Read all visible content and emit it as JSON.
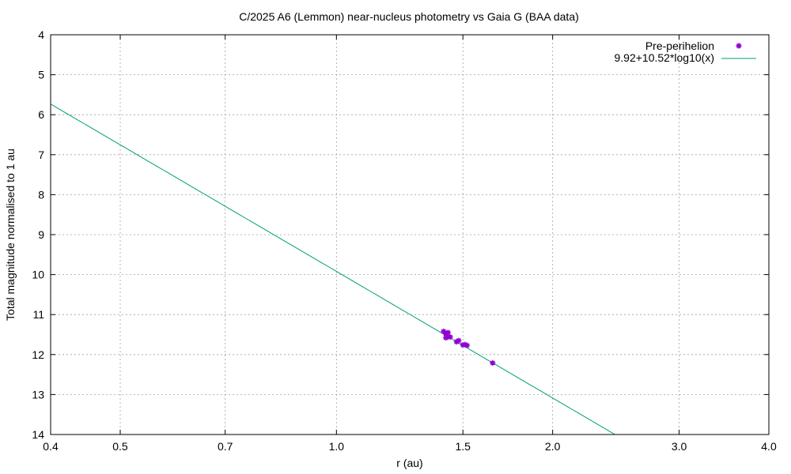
{
  "chart_data": {
    "type": "scatter",
    "title": "C/2025 A6 (Lemmon) near-nucleus photometry vs Gaia G (BAA data)",
    "xlabel": "r (au)",
    "ylabel": "Total magnitude normalised to 1 au",
    "x_scale": "log",
    "xlim": [
      0.4,
      4.0
    ],
    "ylim": [
      14,
      4
    ],
    "y_inverted": true,
    "x_ticks": [
      0.4,
      0.5,
      0.7,
      1.0,
      1.5,
      2.0,
      3.0,
      4.0
    ],
    "x_tick_labels": [
      "0.4",
      "0.5",
      "0.7",
      "1.0",
      "1.5",
      "2.0",
      "3.0",
      "4.0"
    ],
    "y_ticks": [
      4,
      5,
      6,
      7,
      8,
      9,
      10,
      11,
      12,
      13,
      14
    ],
    "y_tick_labels": [
      "4",
      "5",
      "6",
      "7",
      "8",
      "9",
      "10",
      "11",
      "12",
      "13",
      "14"
    ],
    "grid": true,
    "legend_position": "top-right",
    "series": [
      {
        "name": "Pre-perihelion",
        "kind": "points",
        "color": "#9400d3",
        "x": [
          1.41,
          1.42,
          1.42,
          1.43,
          1.43,
          1.44,
          1.47,
          1.48,
          1.5,
          1.51,
          1.52,
          1.65
        ],
        "y": [
          11.42,
          11.48,
          11.58,
          11.45,
          11.55,
          11.56,
          11.68,
          11.65,
          11.76,
          11.75,
          11.77,
          12.21
        ]
      },
      {
        "name": "9.92+10.52*log10(x)",
        "kind": "line",
        "color": "#009e73",
        "intercept": 9.92,
        "slope": 10.52
      }
    ]
  }
}
